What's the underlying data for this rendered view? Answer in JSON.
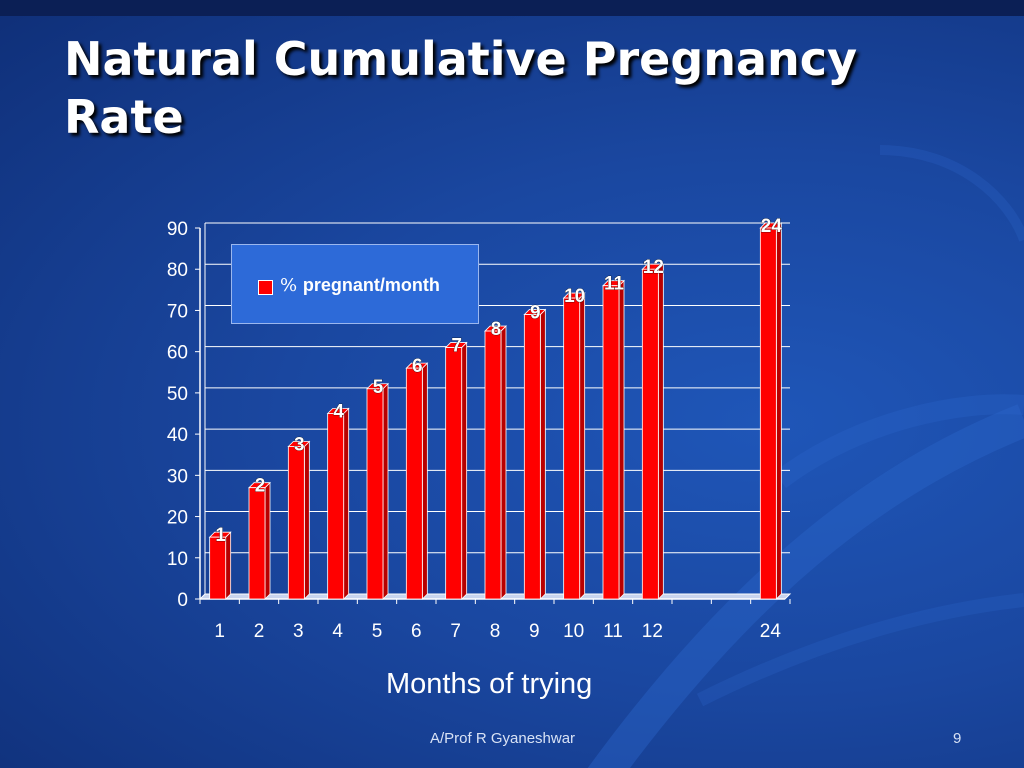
{
  "slide": {
    "title": "Natural Cumulative Pregnancy Rate",
    "footer": "A/Prof R Gyaneshwar",
    "page_number": "9"
  },
  "colors": {
    "background": "#1a47a0",
    "bar_face": "#ff0000",
    "bar_side": "#b80000",
    "legend_background": "#2d6ad8",
    "text": "#ffffff"
  },
  "chart_data": {
    "type": "bar",
    "title": "",
    "xlabel": "Months of trying",
    "ylabel": "",
    "categories": [
      "1",
      "2",
      "3",
      "4",
      "5",
      "6",
      "7",
      "8",
      "9",
      "10",
      "11",
      "12",
      "",
      "",
      "24"
    ],
    "series": [
      {
        "name": "% pregnant/month",
        "values": [
          15,
          27,
          37,
          45,
          51,
          56,
          61,
          65,
          69,
          73,
          76,
          80,
          null,
          null,
          90
        ],
        "data_labels": [
          "1",
          "2",
          "3",
          "4",
          "5",
          "6",
          "7",
          "8",
          "9",
          "10",
          "11",
          "12",
          "",
          "",
          "24"
        ]
      }
    ],
    "ylim": [
      0,
      90
    ],
    "yticks": [
      0,
      10,
      20,
      30,
      40,
      50,
      60,
      70,
      80,
      90
    ],
    "grid": true,
    "legend_position": "top-left"
  }
}
